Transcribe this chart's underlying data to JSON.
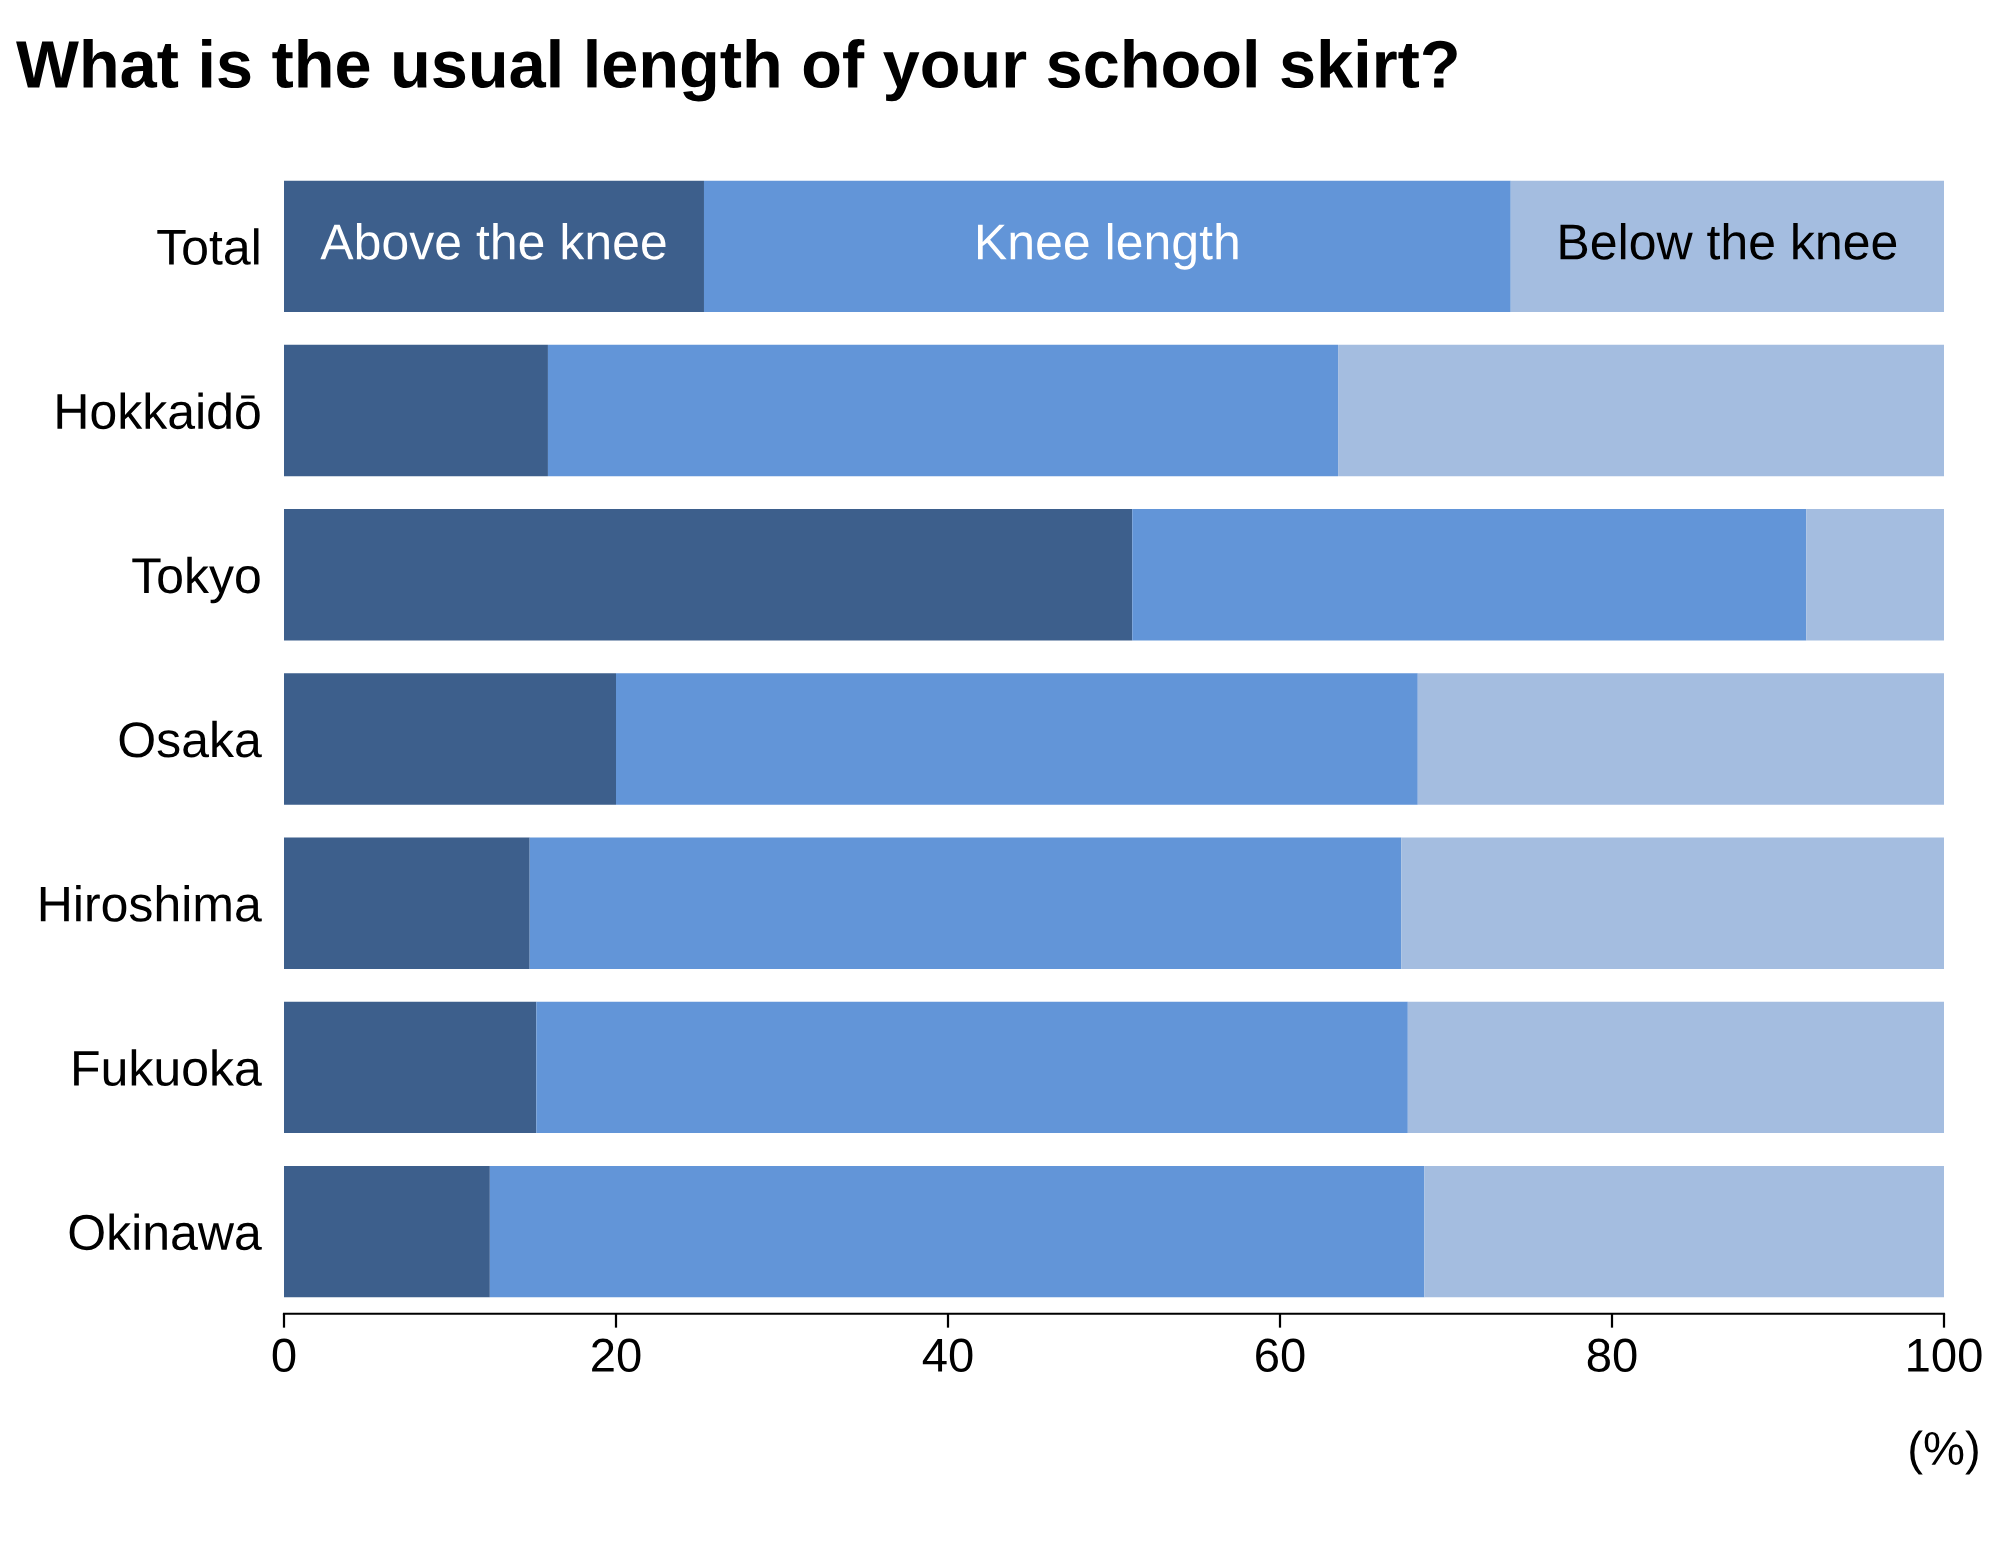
{
  "chart_data": {
    "type": "bar",
    "orientation": "horizontal",
    "stacked": true,
    "title": "What is the usual length of your school skirt?",
    "xlabel": "(%)",
    "categories": [
      "Total",
      "Hokkaidō",
      "Tokyo",
      "Osaka",
      "Hiroshima",
      "Fukuoka",
      "Okinawa"
    ],
    "series": [
      {
        "name": "Above the knee",
        "color": "#3d5f8c",
        "values": [
          25.3,
          15.9,
          51.1,
          20.0,
          14.8,
          15.2,
          12.4
        ]
      },
      {
        "name": "Knee length",
        "color": "#6295d8",
        "values": [
          48.6,
          47.6,
          40.6,
          48.3,
          52.5,
          52.5,
          56.3
        ]
      },
      {
        "name": "Below the knee",
        "color": "#a4bde0",
        "values": [
          26.1,
          36.5,
          8.3,
          31.7,
          32.7,
          32.3,
          31.3
        ]
      }
    ],
    "xlim": [
      0,
      100
    ],
    "xticks": [
      0,
      20,
      40,
      60,
      80,
      100
    ],
    "grid": false,
    "legend": false
  }
}
